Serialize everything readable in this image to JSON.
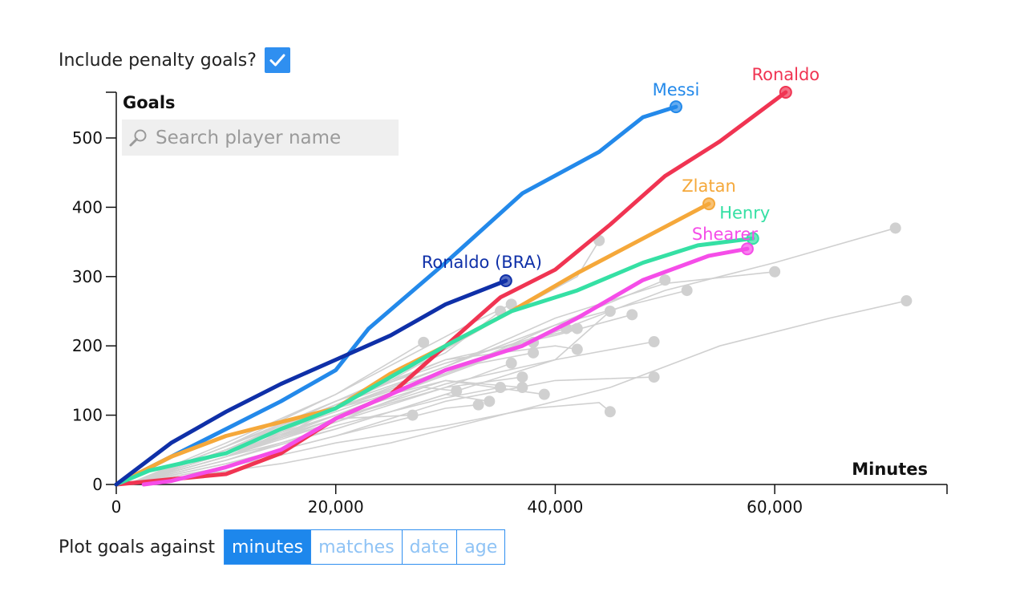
{
  "controls": {
    "penalty_label": "Include penalty goals?",
    "penalty_checked": true,
    "search_placeholder": "Search player name",
    "plot_label": "Plot goals against",
    "plot_options": [
      "minutes",
      "matches",
      "date",
      "age"
    ],
    "plot_selected": "minutes"
  },
  "colors": {
    "accent": "#2f8ff0",
    "background_lines": "#d0d0d0"
  },
  "chart_data": {
    "type": "line",
    "xlabel": "Minutes",
    "ylabel": "Goals",
    "xlim": [
      0,
      75000
    ],
    "ylim": [
      0,
      570
    ],
    "x_ticks": [
      0,
      20000,
      40000,
      60000
    ],
    "x_tick_labels": [
      "0",
      "20,000",
      "40,000",
      "60,000"
    ],
    "y_ticks": [
      0,
      100,
      200,
      300,
      400,
      500
    ],
    "y_tick_labels": [
      "0",
      "100",
      "200",
      "300",
      "400",
      "500"
    ],
    "grid": false,
    "highlighted_series": [
      {
        "name": "Messi",
        "color": "#2389ea",
        "points": [
          [
            0,
            0
          ],
          [
            5000,
            40
          ],
          [
            10000,
            80
          ],
          [
            15000,
            120
          ],
          [
            20000,
            165
          ],
          [
            23000,
            225
          ],
          [
            30000,
            320
          ],
          [
            37000,
            420
          ],
          [
            44000,
            480
          ],
          [
            48000,
            530
          ],
          [
            51000,
            545
          ]
        ]
      },
      {
        "name": "Ronaldo",
        "color": "#f03452",
        "points": [
          [
            0,
            0
          ],
          [
            10000,
            15
          ],
          [
            15000,
            45
          ],
          [
            20000,
            95
          ],
          [
            25000,
            130
          ],
          [
            30000,
            200
          ],
          [
            35000,
            270
          ],
          [
            40000,
            310
          ],
          [
            45000,
            375
          ],
          [
            50000,
            445
          ],
          [
            55000,
            495
          ],
          [
            61000,
            566
          ]
        ]
      },
      {
        "name": "Zlatan",
        "color": "#f5a83a",
        "points": [
          [
            0,
            0
          ],
          [
            5000,
            40
          ],
          [
            10000,
            70
          ],
          [
            15000,
            90
          ],
          [
            20000,
            110
          ],
          [
            25000,
            160
          ],
          [
            30000,
            200
          ],
          [
            36000,
            250
          ],
          [
            42000,
            305
          ],
          [
            48000,
            355
          ],
          [
            54000,
            405
          ]
        ]
      },
      {
        "name": "Henry",
        "color": "#35e0a4",
        "points": [
          [
            0,
            0
          ],
          [
            3000,
            20
          ],
          [
            10000,
            45
          ],
          [
            15000,
            80
          ],
          [
            20000,
            110
          ],
          [
            25000,
            155
          ],
          [
            30000,
            200
          ],
          [
            36000,
            250
          ],
          [
            42000,
            280
          ],
          [
            48000,
            320
          ],
          [
            53000,
            345
          ],
          [
            58000,
            355
          ]
        ]
      },
      {
        "name": "Shearer",
        "color": "#f54de8",
        "points": [
          [
            2500,
            0
          ],
          [
            5000,
            5
          ],
          [
            10000,
            25
          ],
          [
            15000,
            50
          ],
          [
            20000,
            95
          ],
          [
            25000,
            130
          ],
          [
            30000,
            165
          ],
          [
            37000,
            200
          ],
          [
            42000,
            240
          ],
          [
            48000,
            295
          ],
          [
            54000,
            330
          ],
          [
            57500,
            340
          ]
        ]
      },
      {
        "name": "Ronaldo (BRA)",
        "color": "#0f30a8",
        "points": [
          [
            0,
            0
          ],
          [
            5000,
            60
          ],
          [
            10000,
            105
          ],
          [
            15000,
            145
          ],
          [
            20000,
            180
          ],
          [
            25000,
            215
          ],
          [
            30000,
            260
          ],
          [
            35500,
            294
          ]
        ]
      }
    ],
    "background_series": [
      {
        "points": [
          [
            1000,
            0
          ],
          [
            10000,
            40
          ],
          [
            20000,
            110
          ],
          [
            30000,
            160
          ],
          [
            40000,
            220
          ],
          [
            50000,
            280
          ],
          [
            60000,
            320
          ],
          [
            71000,
            370
          ]
        ]
      },
      {
        "points": [
          [
            1000,
            0
          ],
          [
            15000,
            30
          ],
          [
            25000,
            60
          ],
          [
            35000,
            100
          ],
          [
            45000,
            140
          ],
          [
            55000,
            200
          ],
          [
            65000,
            240
          ],
          [
            72000,
            265
          ]
        ]
      },
      {
        "points": [
          [
            1000,
            0
          ],
          [
            10000,
            25
          ],
          [
            20000,
            60
          ],
          [
            30000,
            85
          ],
          [
            38000,
            110
          ],
          [
            44000,
            118
          ],
          [
            45000,
            105
          ]
        ]
      },
      {
        "points": [
          [
            1000,
            0
          ],
          [
            10000,
            40
          ],
          [
            20000,
            80
          ],
          [
            30000,
            130
          ],
          [
            40000,
            180
          ],
          [
            49000,
            206
          ]
        ]
      },
      {
        "points": [
          [
            1000,
            0
          ],
          [
            10000,
            30
          ],
          [
            20000,
            70
          ],
          [
            30000,
            120
          ],
          [
            40000,
            150
          ],
          [
            49000,
            155
          ]
        ]
      },
      {
        "points": [
          [
            1000,
            0
          ],
          [
            15000,
            70
          ],
          [
            25000,
            150
          ],
          [
            35000,
            240
          ],
          [
            42000,
            300
          ],
          [
            44000,
            352
          ]
        ]
      },
      {
        "points": [
          [
            1000,
            0
          ],
          [
            10000,
            50
          ],
          [
            20000,
            110
          ],
          [
            30000,
            170
          ],
          [
            40000,
            240
          ],
          [
            50000,
            290
          ],
          [
            60000,
            307
          ]
        ]
      },
      {
        "points": [
          [
            1000,
            0
          ],
          [
            10000,
            45
          ],
          [
            20000,
            100
          ],
          [
            30000,
            160
          ],
          [
            40000,
            230
          ],
          [
            47000,
            260
          ],
          [
            52000,
            280
          ]
        ]
      },
      {
        "points": [
          [
            1000,
            0
          ],
          [
            10000,
            50
          ],
          [
            20000,
            115
          ],
          [
            30000,
            170
          ],
          [
            40000,
            230
          ],
          [
            50000,
            295
          ]
        ]
      },
      {
        "points": [
          [
            1000,
            0
          ],
          [
            10000,
            55
          ],
          [
            20000,
            130
          ],
          [
            28000,
            205
          ]
        ]
      },
      {
        "points": [
          [
            1000,
            0
          ],
          [
            10000,
            40
          ],
          [
            20000,
            95
          ],
          [
            27000,
            100
          ]
        ]
      },
      {
        "points": [
          [
            1000,
            0
          ],
          [
            10000,
            50
          ],
          [
            20000,
            120
          ],
          [
            30000,
            190
          ],
          [
            35000,
            250
          ]
        ]
      },
      {
        "points": [
          [
            1000,
            0
          ],
          [
            10000,
            45
          ],
          [
            20000,
            110
          ],
          [
            30000,
            150
          ],
          [
            37000,
            140
          ]
        ]
      },
      {
        "points": [
          [
            1000,
            0
          ],
          [
            10000,
            40
          ],
          [
            20000,
            100
          ],
          [
            30000,
            150
          ],
          [
            39000,
            130
          ]
        ]
      },
      {
        "points": [
          [
            1000,
            0
          ],
          [
            10000,
            55
          ],
          [
            20000,
            120
          ],
          [
            30000,
            180
          ],
          [
            40000,
            200
          ],
          [
            42000,
            195
          ]
        ]
      },
      {
        "points": [
          [
            1000,
            0
          ],
          [
            10000,
            35
          ],
          [
            20000,
            80
          ],
          [
            30000,
            130
          ],
          [
            34000,
            120
          ]
        ]
      },
      {
        "points": [
          [
            1000,
            0
          ],
          [
            10000,
            50
          ],
          [
            20000,
            110
          ],
          [
            30000,
            165
          ],
          [
            38000,
            210
          ],
          [
            42000,
            225
          ]
        ]
      },
      {
        "points": [
          [
            1000,
            0
          ],
          [
            10000,
            45
          ],
          [
            20000,
            90
          ],
          [
            30000,
            140
          ],
          [
            37000,
            155
          ]
        ]
      },
      {
        "points": [
          [
            1000,
            0
          ],
          [
            10000,
            60
          ],
          [
            20000,
            130
          ],
          [
            32000,
            230
          ],
          [
            36000,
            260
          ]
        ]
      },
      {
        "points": [
          [
            1000,
            0
          ],
          [
            10000,
            40
          ],
          [
            20000,
            90
          ],
          [
            28000,
            140
          ],
          [
            31000,
            135
          ]
        ]
      },
      {
        "points": [
          [
            1000,
            0
          ],
          [
            10000,
            50
          ],
          [
            20000,
            100
          ],
          [
            33000,
            175
          ],
          [
            38000,
            190
          ]
        ]
      },
      {
        "points": [
          [
            1000,
            0
          ],
          [
            10000,
            30
          ],
          [
            20000,
            70
          ],
          [
            30000,
            110
          ],
          [
            33000,
            115
          ]
        ]
      },
      {
        "points": [
          [
            1000,
            0
          ],
          [
            10000,
            55
          ],
          [
            20000,
            120
          ],
          [
            30000,
            175
          ],
          [
            41000,
            225
          ]
        ]
      },
      {
        "points": [
          [
            1000,
            0
          ],
          [
            10000,
            45
          ],
          [
            20000,
            95
          ],
          [
            30000,
            145
          ],
          [
            40000,
            180
          ],
          [
            45000,
            250
          ]
        ]
      },
      {
        "points": [
          [
            1000,
            0
          ],
          [
            10000,
            55
          ],
          [
            20000,
            115
          ],
          [
            30000,
            180
          ],
          [
            40000,
            215
          ],
          [
            47000,
            245
          ]
        ]
      },
      {
        "points": [
          [
            1000,
            0
          ],
          [
            10000,
            40
          ],
          [
            20000,
            95
          ],
          [
            30000,
            140
          ],
          [
            36000,
            175
          ]
        ]
      },
      {
        "points": [
          [
            1000,
            0
          ],
          [
            10000,
            50
          ],
          [
            20000,
            105
          ],
          [
            30000,
            160
          ],
          [
            38000,
            205
          ]
        ]
      },
      {
        "points": [
          [
            1000,
            0
          ],
          [
            10000,
            35
          ],
          [
            20000,
            85
          ],
          [
            30000,
            125
          ],
          [
            35000,
            140
          ]
        ]
      }
    ]
  }
}
